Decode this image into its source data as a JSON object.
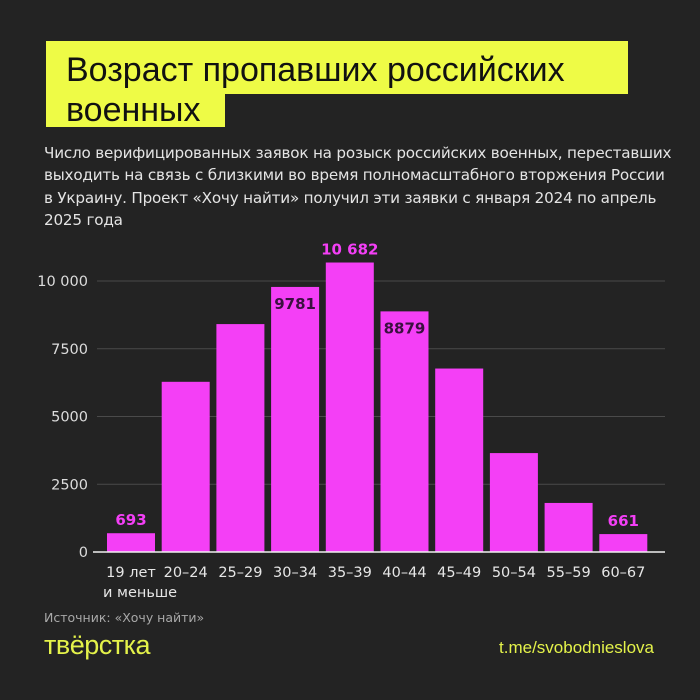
{
  "title_line1": "Возраст пропавших российских",
  "title_line2": "военных",
  "subtitle": "Число верифицированных заявок на розыск российских военных, переставших выходить на связь с близкими во время полномасштабного вторжения России в Украину. Проект «Хочу найти» получил эти заявки с января 2024 по апрель 2025 года",
  "source": "Источник: «Хочу найти»",
  "logo": "твёрстка",
  "link": "t.me/svobodnieslova",
  "colors": {
    "background": "#232323",
    "bar": "#f43ff6",
    "title_bg": "#eefb46",
    "accent_text": "#e4f24a"
  },
  "chart_data": {
    "type": "bar",
    "categories": [
      "19 лет\nи меньше",
      "20–24",
      "25–29",
      "30–34",
      "35–39",
      "40–44",
      "45–49",
      "50–54",
      "55–59",
      "60–67"
    ],
    "values": [
      693,
      6280,
      8410,
      9781,
      10682,
      8879,
      6770,
      3650,
      1810,
      661
    ],
    "data_labels": {
      "0": "693",
      "3": "9781",
      "4": "10 682",
      "5": "8879",
      "9": "661"
    },
    "yticks": [
      0,
      2500,
      5000,
      7500,
      10000
    ],
    "ytick_labels": [
      "0",
      "2500",
      "5000",
      "7500",
      "10 000"
    ],
    "ylim": [
      0,
      10682
    ],
    "grid": true
  }
}
